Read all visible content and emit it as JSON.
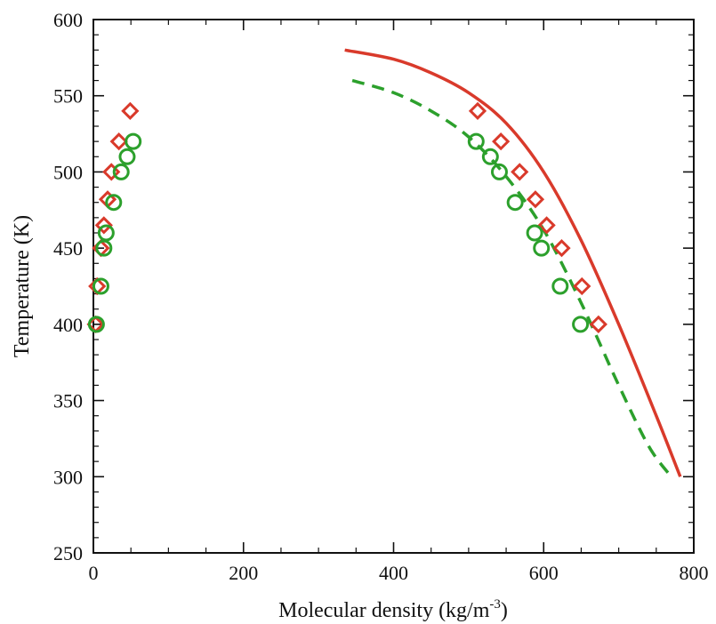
{
  "chart_data": {
    "type": "scatter",
    "title": "",
    "xlabel": "Molecular density (kg/m",
    "xlabel_sup": "-3",
    "xlabel_tail": ")",
    "ylabel": "Temperature (K)",
    "xlim": [
      0,
      800
    ],
    "ylim": [
      250,
      600
    ],
    "xticks": [
      0,
      200,
      400,
      600,
      800
    ],
    "yticks": [
      250,
      300,
      350,
      400,
      450,
      500,
      550,
      600
    ],
    "xtick_labels": [
      "0",
      "200",
      "400",
      "600",
      "800"
    ],
    "ytick_labels": [
      "250",
      "300",
      "350",
      "400",
      "450",
      "500",
      "550",
      "600"
    ],
    "grid": false,
    "legend": "none",
    "series": [
      {
        "marker": "diamond",
        "color": "#d93a2b",
        "points": [
          [
            3,
            400
          ],
          [
            5,
            425
          ],
          [
            10,
            450
          ],
          [
            14,
            465
          ],
          [
            19,
            482
          ],
          [
            24,
            500
          ],
          [
            34,
            520
          ],
          [
            49,
            540
          ],
          [
            673,
            400
          ],
          [
            651,
            425
          ],
          [
            624,
            450
          ],
          [
            604,
            465
          ],
          [
            589,
            482
          ],
          [
            568,
            500
          ],
          [
            543,
            520
          ],
          [
            512,
            540
          ]
        ]
      },
      {
        "marker": "circle",
        "color": "#2ca02c",
        "points": [
          [
            4,
            400
          ],
          [
            10,
            425
          ],
          [
            14,
            450
          ],
          [
            17,
            460
          ],
          [
            27,
            480
          ],
          [
            37,
            500
          ],
          [
            45,
            510
          ],
          [
            53,
            520
          ],
          [
            649,
            400
          ],
          [
            622,
            425
          ],
          [
            597,
            450
          ],
          [
            588,
            460
          ],
          [
            562,
            480
          ],
          [
            541,
            500
          ],
          [
            529,
            510
          ],
          [
            510,
            520
          ]
        ]
      },
      {
        "line": "solid",
        "color": "#d93a2b",
        "points": [
          [
            335,
            580
          ],
          [
            400,
            574
          ],
          [
            450,
            565
          ],
          [
            500,
            552
          ],
          [
            550,
            532
          ],
          [
            600,
            500
          ],
          [
            650,
            455
          ],
          [
            700,
            400
          ],
          [
            750,
            340
          ],
          [
            782,
            300
          ]
        ]
      },
      {
        "line": "dashed",
        "color": "#2ca02c",
        "points": [
          [
            345,
            560
          ],
          [
            400,
            552
          ],
          [
            450,
            540
          ],
          [
            500,
            523
          ],
          [
            550,
            497
          ],
          [
            600,
            462
          ],
          [
            650,
            414
          ],
          [
            700,
            360
          ],
          [
            740,
            320
          ],
          [
            770,
            300
          ]
        ]
      }
    ]
  }
}
